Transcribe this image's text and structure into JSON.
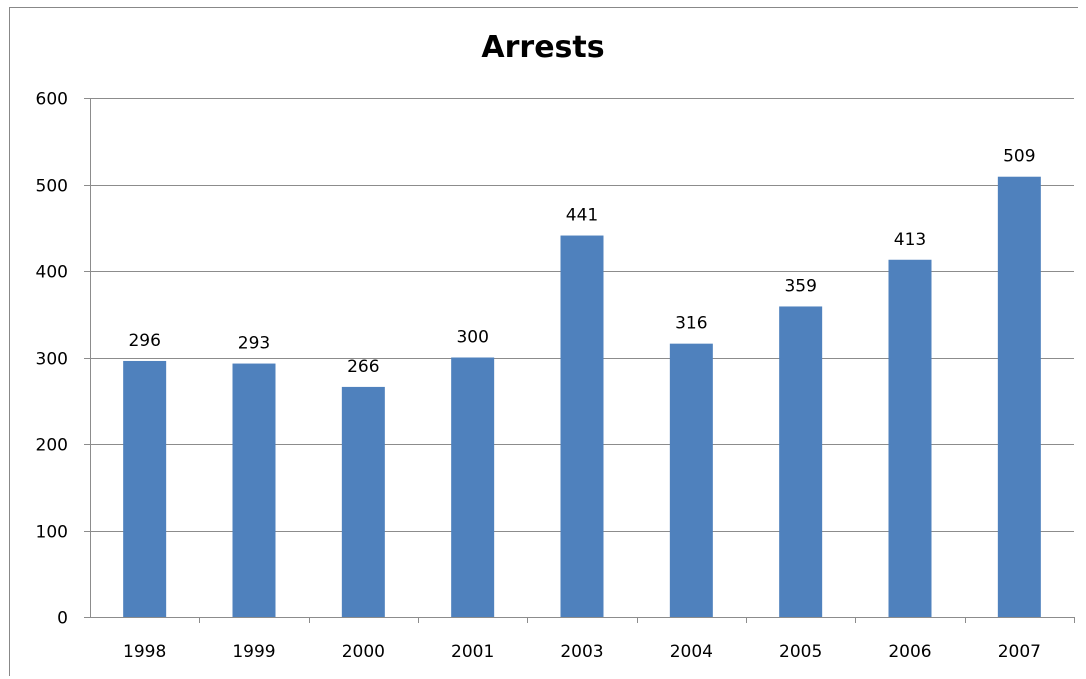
{
  "chart_data": {
    "type": "bar",
    "title": "Arrests",
    "xlabel": "",
    "ylabel": "",
    "categories": [
      "1998",
      "1999",
      "2000",
      "2001",
      "2003",
      "2004",
      "2005",
      "2006",
      "2007"
    ],
    "values": [
      296,
      293,
      266,
      300,
      441,
      316,
      359,
      413,
      509
    ],
    "ylim": [
      0,
      600
    ],
    "yticks": [
      0,
      100,
      200,
      300,
      400,
      500,
      600
    ],
    "grid": true,
    "legend": "none",
    "data_labels": true,
    "colors": {
      "bar": "#4F81BD",
      "grid": "#8C8C8C",
      "axis": "#8C8C8C",
      "text": "#000000"
    }
  }
}
